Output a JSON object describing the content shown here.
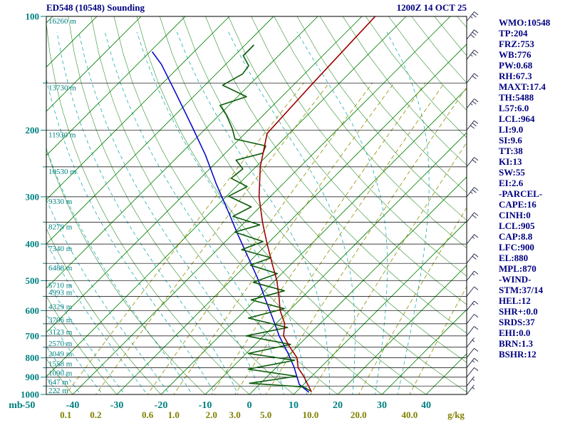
{
  "header": {
    "title": "ED548 (10548) Sounding",
    "datetime": "1200Z 14 OCT 25"
  },
  "stats_panel": [
    "WMO:10548",
    "TP:204",
    "FRZ:753",
    "WB:776",
    "PW:0.68",
    "RH:67.3",
    "MAXT:17.4",
    "TH:5488",
    "L57:6.0",
    "LCL:964",
    "LI:9.0",
    "SI:9.6",
    "TT:38",
    "KI:13",
    "SW:55",
    "EI:2.6",
    "-PARCEL-",
    "CAPE:16",
    "CINH:0",
    "LCL:905",
    "CAP:8.8",
    "LFC:900",
    "EL:880",
    "MPL:870",
    "-WIND-",
    "STM:37/14",
    "HEL:12",
    "SHR+:0.0",
    "SRDS:37",
    "EHI:0.0",
    "BRN:1.3",
    "BSHR:12"
  ],
  "chart_data": {
    "type": "skewt-log-p-sounding",
    "pressure_axis": {
      "unit": "mb",
      "labels": [
        100,
        200,
        300,
        400,
        500,
        600,
        700,
        800,
        900,
        1000
      ],
      "lines_every_mb": 50,
      "range": [
        100,
        1000
      ]
    },
    "temp_axis": {
      "unit": "C",
      "labels": [
        -50,
        -40,
        -30,
        -20,
        -10,
        0,
        10,
        20,
        30,
        40
      ]
    },
    "mixing_ratio_axis": {
      "unit": "g/kg",
      "values": [
        0.1,
        0.2,
        0.6,
        1.0,
        2.0,
        3.0,
        5.0,
        10.0,
        20.0,
        40.0
      ],
      "labels": [
        "0.1",
        "0.2",
        "0.6",
        "1.0",
        "2.0",
        "3.0",
        "5.0",
        "10.0",
        "20.0",
        "40.0"
      ]
    },
    "height_labels": [
      {
        "p": 100,
        "text": "16260 m"
      },
      {
        "p": 150,
        "text": "13730 m"
      },
      {
        "p": 200,
        "text": "11930 m"
      },
      {
        "p": 250,
        "text": "10530 m"
      },
      {
        "p": 300,
        "text": "9330 m"
      },
      {
        "p": 350,
        "text": "8279 m"
      },
      {
        "p": 400,
        "text": "7340 m"
      },
      {
        "p": 450,
        "text": "6488 m"
      },
      {
        "p": 500,
        "text": "5710 m"
      },
      {
        "p": 550,
        "text": "4993 m"
      },
      {
        "p": 600,
        "text": "4329 m"
      },
      {
        "p": 650,
        "text": "3706 m"
      },
      {
        "p": 700,
        "text": "3123 m"
      },
      {
        "p": 750,
        "text": "2570 m"
      },
      {
        "p": 800,
        "text": "2049 m"
      },
      {
        "p": 850,
        "text": "1558 m"
      },
      {
        "p": 900,
        "text": "1090 m"
      },
      {
        "p": 950,
        "text": "647 m"
      },
      {
        "p": 1000,
        "text": "222 m"
      }
    ],
    "grid": {
      "isotherm_range": [
        -130,
        40
      ],
      "isotherm_step": 10,
      "dry_adiabat_range": [
        -60,
        200
      ],
      "dry_adiabat_step": 10,
      "moist_adiabat_range": [
        -40,
        35
      ],
      "moist_adiabat_step": 5
    },
    "temperature_profile": [
      [
        985,
        13.5
      ],
      [
        950,
        11.5
      ],
      [
        925,
        10
      ],
      [
        900,
        8.5
      ],
      [
        850,
        5
      ],
      [
        800,
        2.5
      ],
      [
        750,
        -1.5
      ],
      [
        700,
        -5.5
      ],
      [
        650,
        -8
      ],
      [
        600,
        -12
      ],
      [
        550,
        -15.5
      ],
      [
        500,
        -19.5
      ],
      [
        450,
        -24.5
      ],
      [
        400,
        -30
      ],
      [
        350,
        -36
      ],
      [
        300,
        -42.5
      ],
      [
        250,
        -49
      ],
      [
        204,
        -55
      ],
      [
        150,
        -56
      ],
      [
        100,
        -57
      ]
    ],
    "dewpoint_profile": [
      [
        978,
        13
      ],
      [
        955,
        10.5
      ],
      [
        934,
        -2.5
      ],
      [
        895,
        6.5
      ],
      [
        857,
        -6
      ],
      [
        812,
        2.5
      ],
      [
        779,
        -9.5
      ],
      [
        737,
        -2
      ],
      [
        700,
        -14
      ],
      [
        665,
        -6.5
      ],
      [
        628,
        -17.5
      ],
      [
        593,
        -11.5
      ],
      [
        562,
        -21
      ],
      [
        532,
        -15.5
      ],
      [
        505,
        -24.5
      ],
      [
        479,
        -21
      ],
      [
        455,
        -29
      ],
      [
        435,
        -26
      ],
      [
        414,
        -34.5
      ],
      [
        394,
        -31.5
      ],
      [
        372,
        -40
      ],
      [
        356,
        -36
      ],
      [
        338,
        -44
      ],
      [
        319,
        -42
      ],
      [
        299,
        -49.5
      ],
      [
        282,
        -47.5
      ],
      [
        268,
        -53
      ],
      [
        253,
        -52.5
      ],
      [
        240,
        -56
      ],
      [
        230,
        -51.5
      ],
      [
        220,
        -52.5
      ],
      [
        211,
        -61
      ],
      [
        198,
        -64
      ],
      [
        182,
        -68.5
      ],
      [
        172,
        -72
      ],
      [
        163,
        -68
      ],
      [
        152,
        -76
      ],
      [
        142,
        -74
      ],
      [
        135,
        -74.5
      ],
      [
        127,
        -78
      ],
      [
        119,
        -78
      ]
    ],
    "wetbulb_profile": [
      [
        987,
        13
      ],
      [
        940,
        9
      ],
      [
        848,
        4
      ],
      [
        779,
        -0.5
      ],
      [
        700,
        -6.5
      ],
      [
        628,
        -12
      ],
      [
        559,
        -18
      ],
      [
        492,
        -24.5
      ],
      [
        432,
        -31.5
      ],
      [
        376,
        -39
      ],
      [
        326,
        -46.5
      ],
      [
        278,
        -55
      ],
      [
        233,
        -64
      ],
      [
        194,
        -74
      ],
      [
        159,
        -85
      ],
      [
        134,
        -94.5
      ],
      [
        124,
        -99.5
      ]
    ],
    "wind_barbs": [
      {
        "p": 103,
        "full": 2,
        "half": 1
      },
      {
        "p": 115,
        "full": 3,
        "half": 0
      },
      {
        "p": 130,
        "full": 2,
        "half": 1
      },
      {
        "p": 150,
        "full": 2,
        "half": 0
      },
      {
        "p": 175,
        "full": 2,
        "half": 1
      },
      {
        "p": 200,
        "full": 3,
        "half": 0
      },
      {
        "p": 250,
        "full": 2,
        "half": 0
      },
      {
        "p": 300,
        "full": 2,
        "half": 1
      },
      {
        "p": 350,
        "full": 2,
        "half": 0
      },
      {
        "p": 400,
        "full": 1,
        "half": 1
      },
      {
        "p": 450,
        "full": 2,
        "half": 0
      },
      {
        "p": 500,
        "full": 1,
        "half": 1
      },
      {
        "p": 550,
        "full": 1,
        "half": 0
      },
      {
        "p": 600,
        "full": 1,
        "half": 1
      },
      {
        "p": 650,
        "full": 1,
        "half": 0
      },
      {
        "p": 700,
        "full": 1,
        "half": 0
      },
      {
        "p": 750,
        "full": 0,
        "half": 1
      },
      {
        "p": 800,
        "full": 1,
        "half": 0
      },
      {
        "p": 850,
        "full": 1,
        "half": 1
      },
      {
        "p": 900,
        "full": 1,
        "half": 0
      },
      {
        "p": 950,
        "full": 0,
        "half": 1
      },
      {
        "p": 1000,
        "full": 0,
        "half": 1
      }
    ],
    "colors": {
      "temperature": "#a00000",
      "dewpoint": "#0a5c0a",
      "wetbulb": "#0000cd",
      "isotherm": "#008000",
      "dry_adiabat": "#2f8f2f",
      "moist_adiabat": "#00a3a3",
      "mixing_ratio": "#8f8f00",
      "pressure_line": "#000000",
      "axis_teal": "#008080",
      "label_olive": "#808000",
      "text_navy": "#000080",
      "wind_barb": "#333355"
    }
  }
}
